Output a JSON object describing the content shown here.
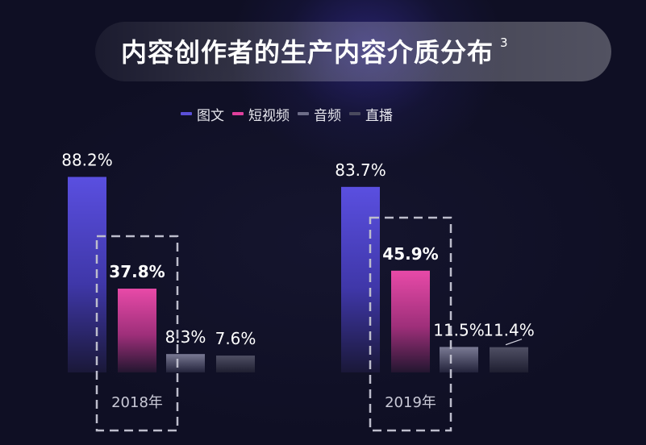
{
  "title": "内容创作者的生产内容介质分布",
  "title_note": "3",
  "colors": {
    "图文": "#5a4fd8",
    "短视频": "#e0409c",
    "音频": "#6d6d88",
    "直播": "#4a4a5e"
  },
  "chart_data": {
    "type": "bar",
    "title": "内容创作者的生产内容介质分布",
    "categories": [
      "2018年",
      "2019年"
    ],
    "series": [
      {
        "name": "图文",
        "values": [
          88.2,
          83.7
        ],
        "labels": [
          "88.2%",
          "83.7%"
        ]
      },
      {
        "name": "短视频",
        "values": [
          37.8,
          45.9
        ],
        "labels": [
          "37.8%",
          "45.9%"
        ]
      },
      {
        "name": "音频",
        "values": [
          8.3,
          11.5
        ],
        "labels": [
          "8.3%",
          "11.5%"
        ]
      },
      {
        "name": "直播",
        "values": [
          7.6,
          11.4
        ],
        "labels": [
          "7.6%",
          "11.4%"
        ]
      }
    ],
    "ylim": [
      0,
      100
    ],
    "legend": "top-center",
    "grid": false,
    "highlight": "短视频 and 音频 bars enclosed by dashed box"
  }
}
